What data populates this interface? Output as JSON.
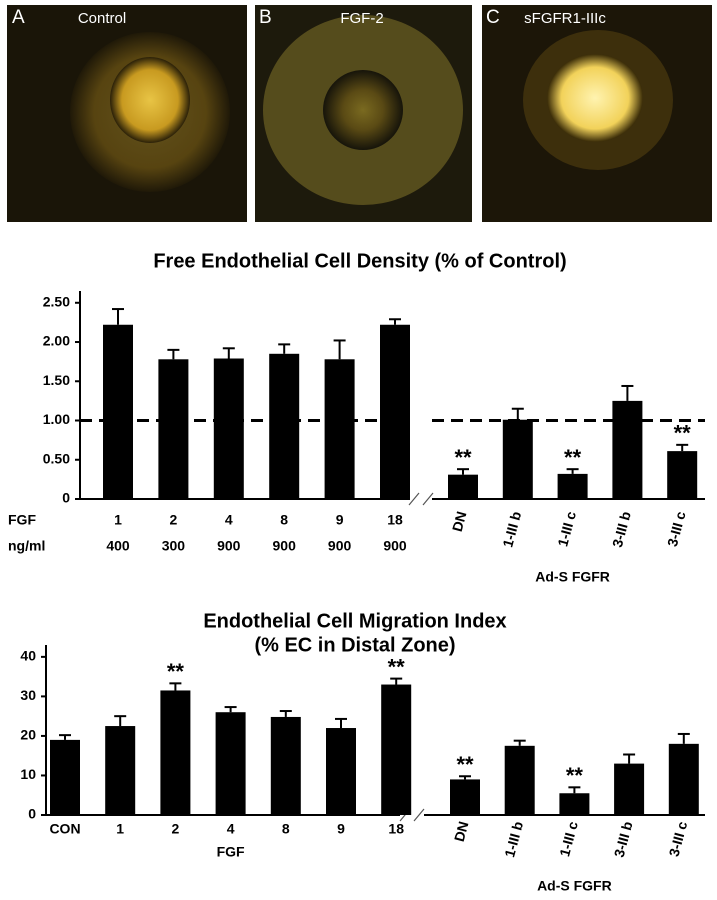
{
  "panels": [
    {
      "letter": "A",
      "label": "Control"
    },
    {
      "letter": "B",
      "label": "FGF-2"
    },
    {
      "letter": "C",
      "label": "sFGFR1-IIIc"
    }
  ],
  "chart_data": [
    {
      "type": "bar",
      "title": "Free Endothelial Cell Density (% of Control)",
      "ylim": [
        0,
        2.65
      ],
      "yticks": [
        0,
        {
          "value": 0.5,
          "label": "0.50"
        },
        {
          "value": 1,
          "label": "1.00"
        },
        {
          "value": 1.5,
          "label": "1.50"
        },
        {
          "value": 2,
          "label": "2.00"
        },
        {
          "value": 2.5,
          "label": "2.50"
        }
      ],
      "reference_line": 1,
      "color": "#000000",
      "groups": [
        {
          "category_label": "FGF",
          "dose_label": "ng/ml",
          "categories": [
            "1",
            "2",
            "4",
            "8",
            "9",
            "18"
          ],
          "doses": [
            "400",
            "300",
            "900",
            "900",
            "900",
            "900"
          ],
          "values": [
            2.22,
            1.78,
            1.79,
            1.85,
            1.78,
            2.22
          ],
          "errors": [
            0.2,
            0.12,
            0.13,
            0.12,
            0.24,
            0.07
          ],
          "significance": [
            null,
            null,
            null,
            null,
            null,
            null
          ]
        },
        {
          "label": "Ad-S FGFR",
          "categories": [
            "DN",
            "1-III b",
            "1-III c",
            "3-III b",
            "3-III c"
          ],
          "values": [
            0.31,
            1.01,
            0.32,
            1.25,
            0.61
          ],
          "errors": [
            0.07,
            0.14,
            0.06,
            0.19,
            0.08
          ],
          "significance": [
            "**",
            null,
            "**",
            null,
            "**"
          ]
        }
      ]
    },
    {
      "type": "bar",
      "title": "Endothelial Cell Migration Index",
      "subtitle": "(% EC in Distal Zone)",
      "ylim": [
        0,
        43
      ],
      "yticks": [
        0,
        10,
        20,
        30,
        40
      ],
      "color": "#000000",
      "groups": [
        {
          "label": "FGF",
          "categories": [
            "CON",
            "1",
            "2",
            "4",
            "8",
            "9",
            "18"
          ],
          "values": [
            19,
            22.5,
            31.5,
            26,
            24.8,
            22,
            33
          ],
          "errors": [
            1.2,
            2.5,
            1.8,
            1.3,
            1.5,
            2.3,
            1.5
          ],
          "significance": [
            null,
            null,
            "**",
            null,
            null,
            null,
            "**"
          ]
        },
        {
          "label": "Ad-S FGFR",
          "categories": [
            "DN",
            "1-III b",
            "1-III c",
            "3-III b",
            "3-III c"
          ],
          "values": [
            9,
            17.5,
            5.5,
            13,
            18
          ],
          "errors": [
            0.8,
            1.3,
            1.5,
            2.3,
            2.5
          ],
          "significance": [
            "**",
            null,
            "**",
            null,
            null
          ]
        }
      ]
    }
  ]
}
